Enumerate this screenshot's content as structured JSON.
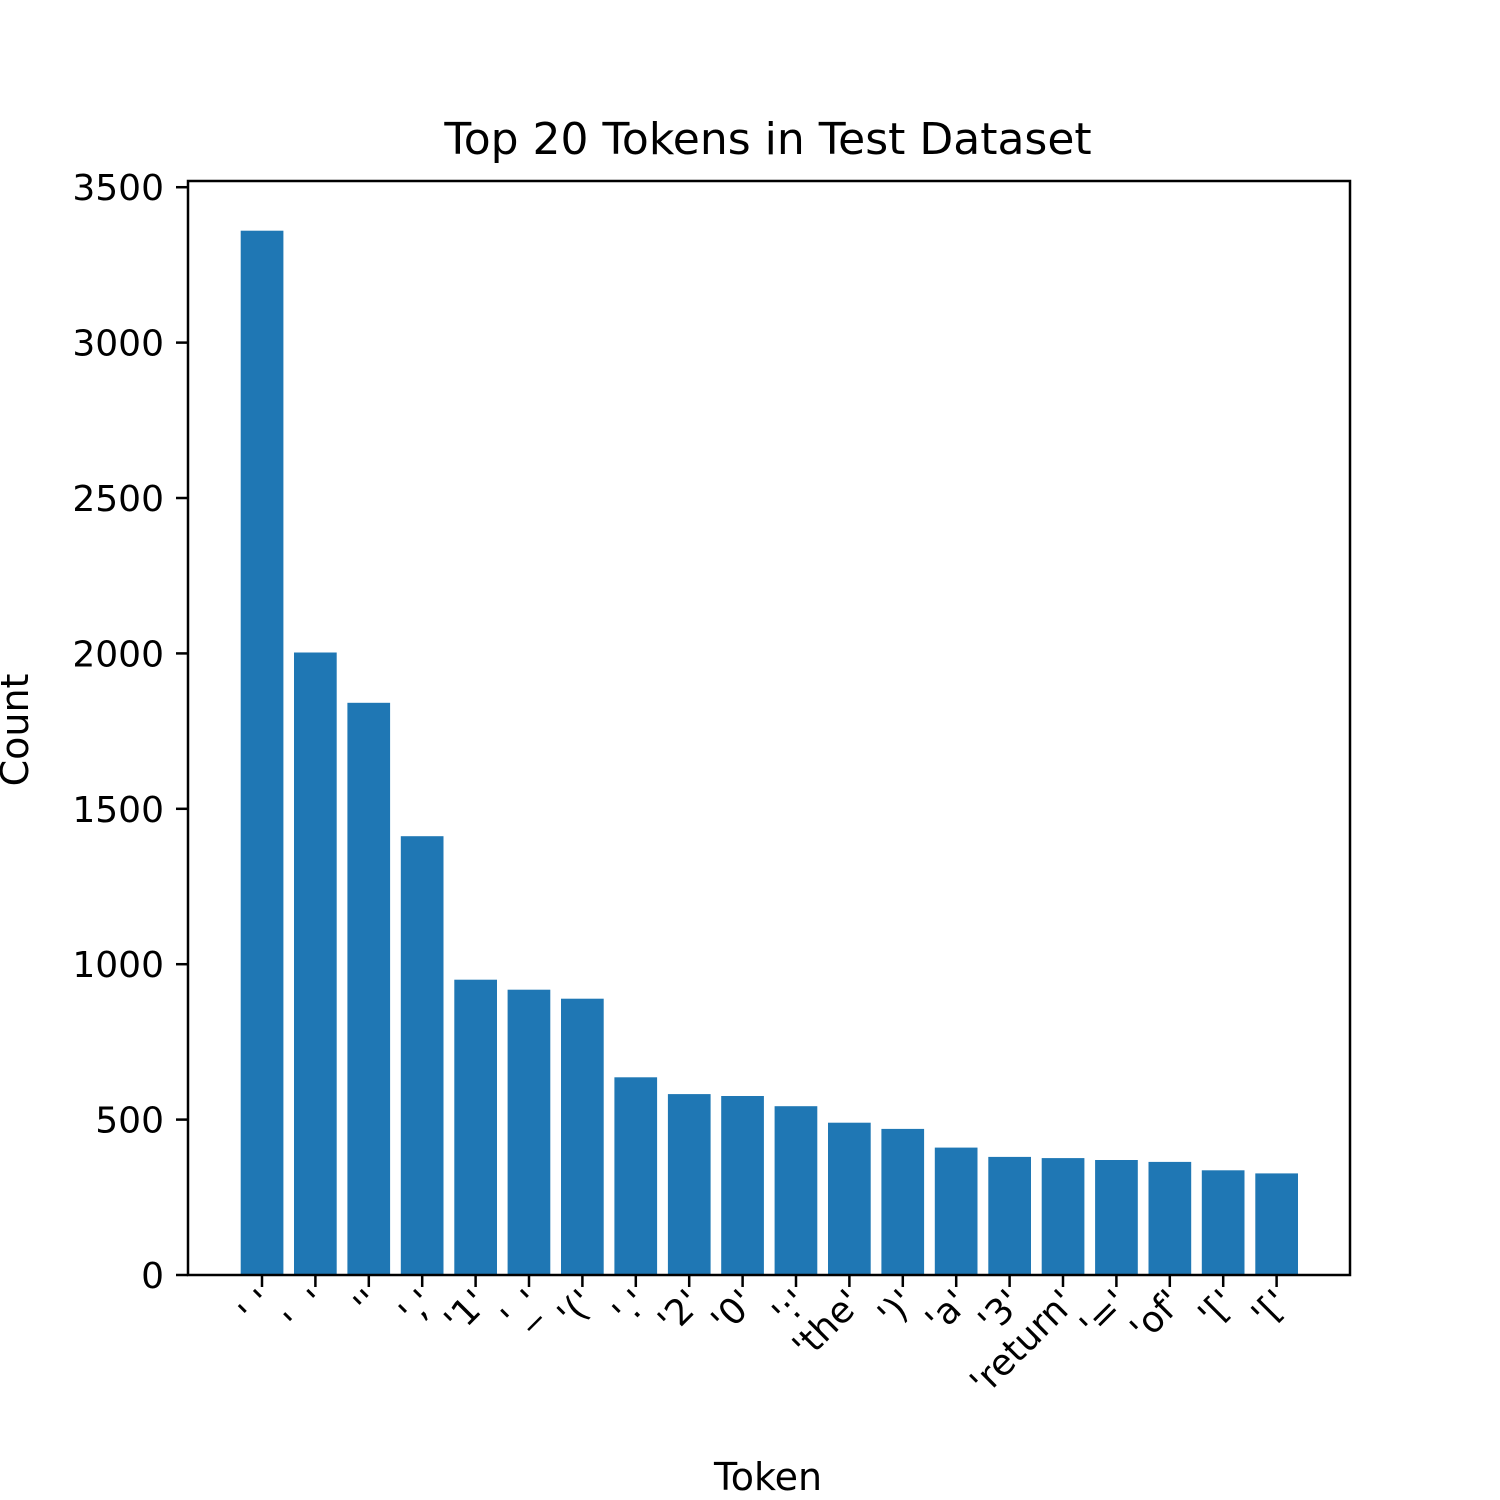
{
  "chart_data": {
    "type": "bar",
    "title": "Top 20 Tokens in Test Dataset",
    "xlabel": "Token",
    "ylabel": "Count",
    "ylim": [
      0,
      3520
    ],
    "yticks": [
      0,
      500,
      1000,
      1500,
      2000,
      2500,
      3000,
      3500
    ],
    "ytick_labels": [
      "0",
      "500",
      "1000",
      "1500",
      "2000",
      "2500",
      "3000",
      "3500"
    ],
    "grid": false,
    "bar_color": "#1f77b4",
    "categories": [
      "' '",
      "'  '",
      "''",
      "','",
      "'1'",
      "'_'",
      "'('",
      "'.'",
      "'2'",
      "'0'",
      "':'",
      "'the'",
      "')'",
      "'a'",
      "'3'",
      "'return'",
      "'='",
      "'of'",
      "'['",
      "'['"
    ],
    "values": [
      3360,
      2003,
      1841,
      1412,
      950,
      918,
      889,
      636,
      582,
      576,
      543,
      490,
      470,
      410,
      380,
      376,
      370,
      364,
      337,
      327
    ]
  }
}
